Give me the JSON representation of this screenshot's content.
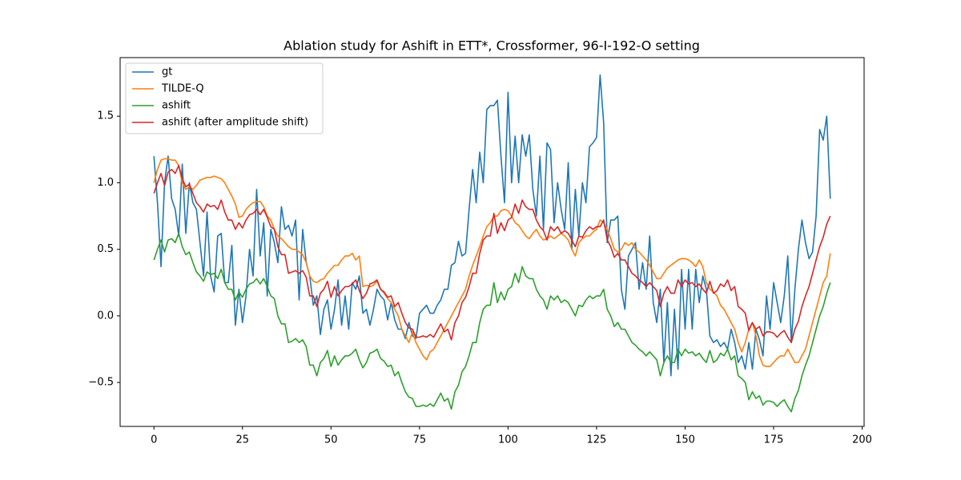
{
  "chart_data": {
    "type": "line",
    "title": "Ablation study for Ashift in ETT*, Crossformer, 96-I-192-O setting",
    "x": [
      0,
      1,
      2,
      3,
      4,
      5,
      6,
      7,
      8,
      9,
      10,
      11,
      12,
      13,
      14,
      15,
      16,
      17,
      18,
      19,
      20,
      21,
      22,
      23,
      24,
      25,
      26,
      27,
      28,
      29,
      30,
      31,
      32,
      33,
      34,
      35,
      36,
      37,
      38,
      39,
      40,
      41,
      42,
      43,
      44,
      45,
      46,
      47,
      48,
      49,
      50,
      51,
      52,
      53,
      54,
      55,
      56,
      57,
      58,
      59,
      60,
      61,
      62,
      63,
      64,
      65,
      66,
      67,
      68,
      69,
      70,
      71,
      72,
      73,
      74,
      75,
      76,
      77,
      78,
      79,
      80,
      81,
      82,
      83,
      84,
      85,
      86,
      87,
      88,
      89,
      90,
      91,
      92,
      93,
      94,
      95,
      96,
      97,
      98,
      99,
      100,
      101,
      102,
      103,
      104,
      105,
      106,
      107,
      108,
      109,
      110,
      111,
      112,
      113,
      114,
      115,
      116,
      117,
      118,
      119,
      120,
      121,
      122,
      123,
      124,
      125,
      126,
      127,
      128,
      129,
      130,
      131,
      132,
      133,
      134,
      135,
      136,
      137,
      138,
      139,
      140,
      141,
      142,
      143,
      144,
      145,
      146,
      147,
      148,
      149,
      150,
      151,
      152,
      153,
      154,
      155,
      156,
      157,
      158,
      159,
      160,
      161,
      162,
      163,
      164,
      165,
      166,
      167,
      168,
      169,
      170,
      171,
      172,
      173,
      174,
      175,
      176,
      177,
      178,
      179,
      180,
      181,
      182,
      183,
      184,
      185,
      186,
      187,
      188,
      189,
      190,
      191
    ],
    "series": [
      {
        "name": "gt",
        "color": "#1f77b4",
        "values": [
          1.2,
          0.85,
          0.37,
          1.0,
          1.2,
          0.88,
          0.8,
          0.6,
          1.14,
          0.62,
          1.0,
          0.85,
          0.8,
          0.55,
          0.3,
          0.78,
          0.3,
          0.18,
          0.6,
          0.62,
          0.25,
          0.25,
          0.53,
          -0.07,
          0.2,
          -0.05,
          0.15,
          0.5,
          0.3,
          0.95,
          0.45,
          0.7,
          0.15,
          0.65,
          0.55,
          0.4,
          0.82,
          0.65,
          0.68,
          0.6,
          0.72,
          0.12,
          0.65,
          0.4,
          0.3,
          0.08,
          0.15,
          -0.14,
          0.05,
          0.12,
          -0.1,
          0.05,
          0.27,
          -0.07,
          0.15,
          -0.1,
          0.25,
          0.2,
          0.3,
          0.02,
          0.05,
          -0.07,
          0.05,
          0.2,
          0.15,
          0.12,
          -0.03,
          0.1,
          -0.03,
          -0.1,
          -0.1,
          -0.17,
          -0.05,
          -0.15,
          -0.17,
          0.02,
          0.05,
          0.08,
          0.02,
          0.02,
          0.08,
          0.12,
          0.2,
          0.2,
          0.38,
          0.4,
          0.56,
          0.45,
          0.47,
          0.8,
          1.1,
          0.85,
          1.23,
          1.0,
          1.55,
          1.58,
          1.58,
          1.62,
          1.2,
          0.85,
          1.68,
          1.0,
          1.35,
          1.0,
          1.36,
          1.2,
          1.36,
          0.95,
          0.75,
          1.2,
          0.65,
          1.3,
          1.25,
          0.7,
          1.0,
          0.8,
          0.65,
          1.15,
          0.5,
          0.95,
          0.6,
          1.0,
          0.85,
          1.27,
          1.3,
          1.34,
          1.81,
          1.45,
          0.55,
          0.72,
          0.72,
          0.75,
          0.2,
          0.05,
          0.45,
          0.5,
          0.55,
          0.2,
          0.4,
          0.2,
          0.6,
          0.1,
          -0.05,
          0.2,
          -0.35,
          0.1,
          -0.45,
          0.05,
          -0.4,
          0.35,
          -0.1,
          0.35,
          -0.1,
          0.35,
          0.1,
          0.3,
          0.2,
          -0.15,
          -0.2,
          -0.18,
          -0.23,
          -0.2,
          -0.25,
          -0.1,
          -0.2,
          -0.35,
          -0.3,
          -0.4,
          -0.2,
          -0.4,
          -0.1,
          -0.18,
          -0.3,
          0.15,
          -0.1,
          0.25,
          0.1,
          -0.05,
          0.15,
          0.45,
          -0.2,
          0.2,
          0.5,
          0.72,
          0.55,
          0.43,
          0.48,
          0.75,
          1.4,
          1.32,
          1.5,
          0.88
        ]
      },
      {
        "name": "TILDE-Q",
        "color": "#ff7f0e",
        "values": [
          1.0,
          1.1,
          1.17,
          1.18,
          1.18,
          1.17,
          1.17,
          1.13,
          1.0,
          0.95,
          0.97,
          0.95,
          0.98,
          1.02,
          1.03,
          1.04,
          1.04,
          1.05,
          1.04,
          1.03,
          1.0,
          0.95,
          0.9,
          0.84,
          0.74,
          0.75,
          0.8,
          0.83,
          0.85,
          0.86,
          0.86,
          0.82,
          0.75,
          0.72,
          0.65,
          0.6,
          0.58,
          0.55,
          0.52,
          0.5,
          0.5,
          0.48,
          0.46,
          0.4,
          0.3,
          0.26,
          0.25,
          0.27,
          0.28,
          0.32,
          0.35,
          0.38,
          0.38,
          0.42,
          0.45,
          0.45,
          0.47,
          0.42,
          0.45,
          0.22,
          0.23,
          0.22,
          0.23,
          0.26,
          0.2,
          0.17,
          0.13,
          0.1,
          0.05,
          0.0,
          -0.1,
          -0.15,
          -0.2,
          -0.12,
          -0.2,
          -0.25,
          -0.3,
          -0.33,
          -0.27,
          -0.25,
          -0.2,
          -0.15,
          -0.1,
          -0.05,
          0.0,
          0.05,
          0.1,
          0.15,
          0.2,
          0.3,
          0.38,
          0.45,
          0.52,
          0.6,
          0.67,
          0.7,
          0.75,
          0.75,
          0.79,
          0.8,
          0.79,
          0.75,
          0.7,
          0.68,
          0.64,
          0.6,
          0.58,
          0.62,
          0.65,
          0.6,
          0.57,
          0.58,
          0.6,
          0.58,
          0.6,
          0.62,
          0.6,
          0.57,
          0.5,
          0.45,
          0.55,
          0.58,
          0.6,
          0.6,
          0.63,
          0.65,
          0.72,
          0.7,
          0.65,
          0.58,
          0.5,
          0.48,
          0.5,
          0.55,
          0.53,
          0.55,
          0.5,
          0.48,
          0.45,
          0.42,
          0.38,
          0.33,
          0.28,
          0.28,
          0.32,
          0.36,
          0.38,
          0.4,
          0.42,
          0.43,
          0.43,
          0.42,
          0.4,
          0.37,
          0.42,
          0.37,
          0.25,
          0.2,
          0.18,
          0.15,
          0.08,
          0.05,
          0.0,
          -0.05,
          -0.1,
          -0.2,
          -0.27,
          -0.2,
          -0.1,
          -0.05,
          -0.15,
          -0.3,
          -0.37,
          -0.38,
          -0.38,
          -0.35,
          -0.32,
          -0.3,
          -0.3,
          -0.25,
          -0.3,
          -0.35,
          -0.35,
          -0.3,
          -0.25,
          -0.15,
          -0.05,
          0.05,
          0.15,
          0.25,
          0.3,
          0.47
        ]
      },
      {
        "name": "ashift",
        "color": "#2ca02c",
        "values": [
          0.42,
          0.5,
          0.57,
          0.48,
          0.57,
          0.58,
          0.55,
          0.62,
          0.52,
          0.46,
          0.48,
          0.4,
          0.33,
          0.3,
          0.26,
          0.33,
          0.31,
          0.32,
          0.28,
          0.35,
          0.25,
          0.2,
          0.2,
          0.12,
          0.18,
          0.14,
          0.2,
          0.24,
          0.25,
          0.28,
          0.24,
          0.28,
          0.22,
          0.15,
          0.13,
          0.0,
          -0.06,
          -0.06,
          -0.2,
          -0.19,
          -0.17,
          -0.2,
          -0.18,
          -0.23,
          -0.37,
          -0.37,
          -0.45,
          -0.35,
          -0.32,
          -0.26,
          -0.38,
          -0.3,
          -0.37,
          -0.33,
          -0.3,
          -0.3,
          -0.28,
          -0.25,
          -0.33,
          -0.39,
          -0.35,
          -0.28,
          -0.27,
          -0.25,
          -0.32,
          -0.34,
          -0.38,
          -0.37,
          -0.45,
          -0.42,
          -0.5,
          -0.57,
          -0.61,
          -0.62,
          -0.68,
          -0.68,
          -0.67,
          -0.68,
          -0.66,
          -0.68,
          -0.63,
          -0.58,
          -0.64,
          -0.62,
          -0.7,
          -0.57,
          -0.52,
          -0.42,
          -0.38,
          -0.3,
          -0.2,
          -0.2,
          -0.05,
          0.05,
          0.08,
          0.08,
          0.25,
          0.1,
          0.18,
          0.12,
          0.2,
          0.22,
          0.32,
          0.25,
          0.37,
          0.3,
          0.28,
          0.28,
          0.2,
          0.15,
          0.12,
          0.05,
          0.15,
          0.12,
          0.15,
          0.1,
          0.12,
          0.1,
          0.05,
          0.0,
          0.08,
          0.07,
          0.12,
          0.15,
          0.13,
          0.15,
          0.15,
          0.2,
          0.05,
          0.0,
          -0.08,
          -0.05,
          -0.1,
          -0.1,
          -0.15,
          -0.2,
          -0.22,
          -0.25,
          -0.27,
          -0.3,
          -0.27,
          -0.3,
          -0.33,
          -0.45,
          -0.35,
          -0.3,
          -0.35,
          -0.35,
          -0.25,
          -0.3,
          -0.25,
          -0.28,
          -0.27,
          -0.3,
          -0.28,
          -0.32,
          -0.35,
          -0.26,
          -0.35,
          -0.33,
          -0.28,
          -0.3,
          -0.25,
          -0.33,
          -0.3,
          -0.45,
          -0.47,
          -0.5,
          -0.63,
          -0.57,
          -0.62,
          -0.6,
          -0.67,
          -0.64,
          -0.64,
          -0.65,
          -0.68,
          -0.65,
          -0.63,
          -0.68,
          -0.72,
          -0.62,
          -0.56,
          -0.45,
          -0.37,
          -0.3,
          -0.2,
          -0.1,
          0.0,
          0.07,
          0.17,
          0.25
        ]
      },
      {
        "name": "ashift (after amplitude shift)",
        "color": "#d62728",
        "values": [
          0.92,
          1.0,
          1.07,
          0.98,
          1.08,
          1.1,
          1.07,
          1.13,
          1.03,
          0.97,
          0.99,
          0.92,
          0.85,
          0.82,
          0.78,
          0.84,
          0.82,
          0.83,
          0.8,
          0.87,
          0.78,
          0.72,
          0.72,
          0.65,
          0.7,
          0.66,
          0.72,
          0.76,
          0.77,
          0.8,
          0.76,
          0.8,
          0.74,
          0.67,
          0.65,
          0.52,
          0.46,
          0.46,
          0.32,
          0.33,
          0.34,
          0.32,
          0.34,
          0.29,
          0.15,
          0.15,
          0.07,
          0.17,
          0.2,
          0.26,
          0.14,
          0.22,
          0.15,
          0.19,
          0.22,
          0.22,
          0.24,
          0.27,
          0.19,
          0.13,
          0.17,
          0.24,
          0.25,
          0.27,
          0.2,
          0.18,
          0.14,
          0.15,
          0.07,
          0.1,
          0.02,
          -0.05,
          -0.09,
          -0.1,
          -0.16,
          -0.16,
          -0.15,
          -0.16,
          -0.14,
          -0.16,
          -0.11,
          -0.06,
          -0.12,
          -0.1,
          -0.18,
          -0.05,
          0.0,
          0.1,
          0.14,
          0.22,
          0.32,
          0.32,
          0.47,
          0.57,
          0.6,
          0.6,
          0.77,
          0.62,
          0.7,
          0.64,
          0.72,
          0.74,
          0.84,
          0.77,
          0.87,
          0.82,
          0.8,
          0.8,
          0.72,
          0.67,
          0.64,
          0.57,
          0.67,
          0.64,
          0.67,
          0.62,
          0.64,
          0.62,
          0.57,
          0.52,
          0.6,
          0.59,
          0.64,
          0.67,
          0.65,
          0.67,
          0.67,
          0.72,
          0.57,
          0.52,
          0.44,
          0.47,
          0.42,
          0.42,
          0.37,
          0.32,
          0.3,
          0.27,
          0.25,
          0.22,
          0.25,
          0.22,
          0.19,
          0.07,
          0.17,
          0.22,
          0.17,
          0.17,
          0.27,
          0.22,
          0.27,
          0.24,
          0.25,
          0.22,
          0.24,
          0.2,
          0.17,
          0.26,
          0.17,
          0.19,
          0.24,
          0.22,
          0.27,
          0.19,
          0.22,
          0.07,
          0.05,
          0.02,
          -0.11,
          -0.05,
          -0.1,
          -0.08,
          -0.15,
          -0.12,
          -0.12,
          -0.13,
          -0.16,
          -0.13,
          -0.11,
          -0.16,
          -0.2,
          -0.1,
          -0.04,
          0.07,
          0.15,
          0.22,
          0.32,
          0.42,
          0.52,
          0.59,
          0.69,
          0.75
        ]
      }
    ],
    "xlim": [
      -9.55,
      200.55
    ],
    "ylim": [
      -0.83,
      1.94
    ],
    "xticks": [
      0,
      25,
      50,
      75,
      100,
      125,
      150,
      175,
      200
    ],
    "yticks": [
      {
        "value": -0.5,
        "label": "−0.5"
      },
      {
        "value": 0,
        "label": "0.0"
      },
      0.5,
      {
        "value": 1,
        "label": "1.0"
      },
      1.5
    ],
    "legend": "upper left",
    "grid": false
  }
}
